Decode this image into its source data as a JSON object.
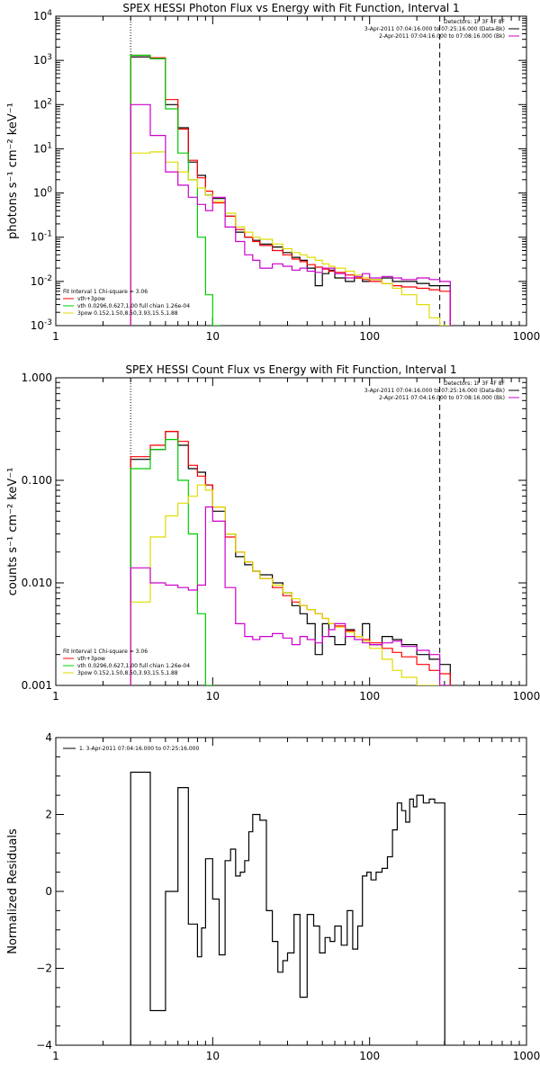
{
  "chart_data": [
    {
      "type": "line",
      "title": "SPEX HESSI Photon Flux vs Energy with Fit Function, Interval 1",
      "xlabel": "",
      "ylabel": "photons s⁻¹ cm⁻² keV⁻¹",
      "xscale": "log",
      "yscale": "log",
      "xlim": [
        1,
        1000
      ],
      "ylim": [
        0.001,
        10000
      ],
      "xticks": [
        1,
        10,
        100,
        1000
      ],
      "xtick_labels": [
        "1",
        "10",
        "100",
        "1000"
      ],
      "yticks": [
        0.001,
        0.01,
        0.1,
        1,
        10,
        100,
        1000,
        10000
      ],
      "ytick_labels": [
        [
          "10",
          "-3"
        ],
        [
          "10",
          "-2"
        ],
        [
          "10",
          "-1"
        ],
        [
          "10",
          "0"
        ],
        [
          "10",
          "1"
        ],
        [
          "10",
          "2"
        ],
        [
          "10",
          "3"
        ],
        [
          "10",
          "4"
        ]
      ],
      "vlines": [
        {
          "x": 3,
          "style": "dotted"
        },
        {
          "x": 280,
          "style": "dashed"
        }
      ],
      "legend_topright": [
        "Detectors: 1F 3F 4F 8F",
        "3-Apr-2011 07:04:16.000 to 07:25:16.000 (Data-Bk)",
        "2-Apr-2011 07:04:16.000 to 07:08:16.000 (Bk)"
      ],
      "legend_bottomleft": [
        "Fit Interval 1    Chi-square = 3.06",
        "vth+3pow",
        "vth 0.0296,0.627,1.00  full chian 1.26e-04",
        "3pow 0.152,1.50,8.50,3.93,15.5,1.88"
      ],
      "series": [
        {
          "name": "3-Apr-2011 07:04:16.000 to 07:25:16.000 (Data-Bk)",
          "color": "#000000",
          "x": [
            3,
            4,
            5,
            6,
            7,
            8,
            9,
            10,
            12,
            14,
            16,
            18,
            20,
            24,
            28,
            32,
            36,
            40,
            45,
            50,
            55,
            60,
            70,
            80,
            90,
            100,
            120,
            140,
            160,
            200,
            240,
            280
          ],
          "y": [
            1200,
            1100,
            100,
            30,
            5,
            2.5,
            0.9,
            0.75,
            0.3,
            0.13,
            0.1,
            0.085,
            0.07,
            0.06,
            0.045,
            0.035,
            0.03,
            0.02,
            0.008,
            0.015,
            0.018,
            0.012,
            0.01,
            0.012,
            0.01,
            0.011,
            0.012,
            0.01,
            0.01,
            0.009,
            0.008,
            0.008
          ]
        },
        {
          "name": "vth+3pow",
          "color": "#ff0000",
          "x": [
            3,
            4,
            5,
            6,
            7,
            8,
            9,
            10,
            12,
            14,
            16,
            18,
            20,
            24,
            28,
            32,
            36,
            40,
            45,
            50,
            55,
            60,
            70,
            80,
            90,
            100,
            120,
            140,
            160,
            200,
            240,
            280
          ],
          "y": [
            1300,
            1150,
            130,
            28,
            5.5,
            2.2,
            1.1,
            0.6,
            0.3,
            0.15,
            0.1,
            0.08,
            0.065,
            0.05,
            0.04,
            0.032,
            0.028,
            0.024,
            0.021,
            0.019,
            0.017,
            0.016,
            0.014,
            0.012,
            0.011,
            0.01,
            0.009,
            0.008,
            0.0075,
            0.007,
            0.0065,
            0.006
          ]
        },
        {
          "name": "vth 0.0296,0.627,1.00  full chian 1.26e-04",
          "color": "#00cc00",
          "x": [
            3,
            4,
            5,
            6,
            7,
            8,
            9,
            10
          ],
          "y": [
            1300,
            1100,
            80,
            8,
            2,
            0.1,
            0.005,
            0.001
          ]
        },
        {
          "name": "3pow 0.152,1.50,8.50,3.93,15.5,1.88",
          "color": "#dddd00",
          "x": [
            3,
            4,
            5,
            6,
            7,
            8,
            9,
            10,
            12,
            14,
            16,
            18,
            20,
            24,
            28,
            32,
            36,
            40,
            45,
            50,
            55,
            60,
            70,
            80,
            90,
            100,
            120,
            140,
            160,
            200,
            240,
            280
          ],
          "y": [
            8,
            8.5,
            5,
            3,
            2,
            1.3,
            0.9,
            0.65,
            0.35,
            0.17,
            0.13,
            0.1,
            0.09,
            0.07,
            0.055,
            0.045,
            0.04,
            0.035,
            0.03,
            0.025,
            0.022,
            0.02,
            0.017,
            0.014,
            0.012,
            0.011,
            0.009,
            0.007,
            0.005,
            0.003,
            0.0015,
            0.001
          ]
        },
        {
          "name": "2-Apr-2011 07:04:16.000 to 07:08:16.000 (Bk)",
          "color": "#cc00cc",
          "x": [
            3,
            4,
            5,
            6,
            7,
            8,
            9,
            10,
            12,
            14,
            16,
            18,
            20,
            24,
            28,
            32,
            36,
            40,
            45,
            50,
            55,
            60,
            70,
            80,
            90,
            100,
            120,
            140,
            160,
            200,
            240,
            280
          ],
          "y": [
            100,
            20,
            3,
            1.5,
            0.8,
            0.55,
            0.4,
            0.8,
            0.17,
            0.08,
            0.04,
            0.03,
            0.02,
            0.025,
            0.022,
            0.018,
            0.02,
            0.017,
            0.016,
            0.02,
            0.02,
            0.015,
            0.012,
            0.013,
            0.015,
            0.012,
            0.013,
            0.012,
            0.011,
            0.012,
            0.011,
            0.01
          ]
        }
      ]
    },
    {
      "type": "line",
      "title": "SPEX HESSI Count Flux vs Energy with Fit Function, Interval 1",
      "xlabel": "",
      "ylabel": "counts s⁻¹ cm⁻² keV⁻¹",
      "xscale": "log",
      "yscale": "log",
      "xlim": [
        1,
        1000
      ],
      "ylim": [
        0.001,
        1
      ],
      "xticks": [
        1,
        10,
        100,
        1000
      ],
      "xtick_labels": [
        "1",
        "10",
        "100",
        "1000"
      ],
      "yticks": [
        0.001,
        0.01,
        0.1,
        1
      ],
      "ytick_labels": [
        [
          "0.001",
          ""
        ],
        [
          "0.010",
          ""
        ],
        [
          "0.100",
          ""
        ],
        [
          "1.000",
          ""
        ]
      ],
      "vlines": [
        {
          "x": 3,
          "style": "dotted"
        },
        {
          "x": 280,
          "style": "dashed"
        }
      ],
      "legend_topright": [
        "Detectors: 1F 3F 4F 8F",
        "3-Apr-2011 07:04:16.000 to 07:25:16.000 (Data-Bk)",
        "2-Apr-2011 07:04:16.000 to 07:08:16.000 (Bk)"
      ],
      "legend_bottomleft": [
        "Fit Interval 1    Chi-square = 3.06",
        "vth+3pow",
        "vth 0.0296,0.627,1.00  full chian 1.26e-04",
        "3pow 0.152,1.50,8.50,3.93,15.5,1.88"
      ],
      "series": [
        {
          "name": "3-Apr-2011 07:04:16.000 to 07:25:16.000 (Data-Bk)",
          "color": "#000000",
          "x": [
            3,
            4,
            5,
            6,
            7,
            8,
            9,
            10,
            12,
            14,
            16,
            18,
            20,
            24,
            28,
            32,
            36,
            40,
            45,
            50,
            55,
            60,
            70,
            80,
            90,
            100,
            120,
            140,
            160,
            200,
            240,
            280
          ],
          "y": [
            0.16,
            0.2,
            0.3,
            0.22,
            0.13,
            0.12,
            0.09,
            0.05,
            0.03,
            0.018,
            0.015,
            0.013,
            0.012,
            0.01,
            0.008,
            0.006,
            0.005,
            0.004,
            0.002,
            0.004,
            0.003,
            0.0025,
            0.0035,
            0.003,
            0.004,
            0.0025,
            0.003,
            0.0028,
            0.0025,
            0.002,
            0.0018,
            0.0016
          ]
        },
        {
          "name": "vth+3pow",
          "color": "#ff0000",
          "x": [
            3,
            4,
            5,
            6,
            7,
            8,
            9,
            10,
            12,
            14,
            16,
            18,
            20,
            24,
            28,
            32,
            36,
            40,
            45,
            50,
            55,
            60,
            70,
            80,
            90,
            100,
            120,
            140,
            160,
            200,
            240,
            280
          ],
          "y": [
            0.17,
            0.22,
            0.3,
            0.24,
            0.14,
            0.11,
            0.09,
            0.055,
            0.028,
            0.02,
            0.016,
            0.013,
            0.011,
            0.009,
            0.0075,
            0.0065,
            0.006,
            0.0055,
            0.005,
            0.0045,
            0.004,
            0.0038,
            0.0034,
            0.003,
            0.0028,
            0.0026,
            0.0023,
            0.0021,
            0.0019,
            0.0016,
            0.0014,
            0.0013
          ]
        },
        {
          "name": "vth 0.0296,0.627,1.00  full chian 1.26e-04",
          "color": "#00cc00",
          "x": [
            3,
            4,
            5,
            6,
            7,
            8,
            9
          ],
          "y": [
            0.13,
            0.2,
            0.25,
            0.1,
            0.03,
            0.005,
            0.001
          ]
        },
        {
          "name": "3pow 0.152,1.50,8.50,3.93,15.5,1.88",
          "color": "#dddd00",
          "x": [
            3,
            4,
            5,
            6,
            7,
            8,
            9,
            10,
            12,
            14,
            16,
            18,
            20,
            24,
            28,
            32,
            36,
            40,
            45,
            50,
            55,
            60,
            70,
            80,
            90,
            100,
            120,
            140,
            160,
            200,
            240
          ],
          "y": [
            0.0065,
            0.028,
            0.045,
            0.06,
            0.07,
            0.09,
            0.08,
            0.055,
            0.03,
            0.02,
            0.016,
            0.013,
            0.011,
            0.0095,
            0.008,
            0.007,
            0.006,
            0.0055,
            0.005,
            0.0045,
            0.004,
            0.0037,
            0.0033,
            0.003,
            0.0027,
            0.0023,
            0.0018,
            0.0014,
            0.0012,
            0.001,
            0.001
          ]
        },
        {
          "name": "2-Apr-2011 07:04:16.000 to 07:08:16.000 (Bk)",
          "color": "#cc00cc",
          "x": [
            3,
            4,
            5,
            6,
            7,
            8,
            9,
            10,
            12,
            14,
            16,
            18,
            20,
            24,
            28,
            32,
            36,
            40,
            45,
            50,
            55,
            60,
            70,
            80,
            90,
            100,
            120,
            140,
            160,
            200,
            240,
            280
          ],
          "y": [
            0.014,
            0.01,
            0.0095,
            0.009,
            0.0085,
            0.0095,
            0.055,
            0.04,
            0.009,
            0.004,
            0.003,
            0.0028,
            0.003,
            0.0032,
            0.0029,
            0.0025,
            0.003,
            0.0028,
            0.0026,
            0.003,
            0.0035,
            0.004,
            0.003,
            0.0028,
            0.0026,
            0.0025,
            0.0026,
            0.0027,
            0.0024,
            0.0022,
            0.002,
            0.001
          ]
        }
      ]
    },
    {
      "type": "line",
      "title": "",
      "xlabel": "",
      "ylabel": "Normalized Residuals",
      "xscale": "log",
      "yscale": "linear",
      "xlim": [
        1,
        1000
      ],
      "ylim": [
        -4,
        4
      ],
      "xticks": [
        1,
        10,
        100,
        1000
      ],
      "xtick_labels": [
        "1",
        "10",
        "100",
        "1000"
      ],
      "yticks": [
        -4,
        -2,
        0,
        2,
        4
      ],
      "ytick_labels": [
        [
          "−4",
          ""
        ],
        [
          "−2",
          ""
        ],
        [
          "0",
          ""
        ],
        [
          "2",
          ""
        ],
        [
          "4",
          ""
        ]
      ],
      "legend_topleft": [
        "1.  3-Apr-2011 07:04:16.000 to 07:25:16.000"
      ],
      "series": [
        {
          "name": "1.  3-Apr-2011 07:04:16.000 to 07:25:16.000",
          "color": "#000000",
          "x": [
            3,
            4,
            5,
            6,
            7,
            8,
            8.5,
            9,
            10,
            11,
            12,
            13,
            14,
            15,
            16,
            17,
            18,
            20,
            22,
            24,
            26,
            28,
            30,
            33,
            36,
            40,
            44,
            48,
            52,
            56,
            60,
            66,
            72,
            78,
            84,
            90,
            96,
            102,
            110,
            120,
            130,
            140,
            150,
            160,
            170,
            180,
            190,
            200,
            220,
            240,
            260,
            280
          ],
          "y": [
            3.1,
            -3.1,
            0,
            2.7,
            -0.85,
            -1.7,
            -0.95,
            0.85,
            -0.2,
            -1.65,
            0.8,
            1.1,
            0.4,
            0.5,
            0.8,
            1.55,
            2.0,
            1.85,
            -0.5,
            -1.3,
            -2.1,
            -1.8,
            -1.6,
            -0.6,
            -2.75,
            -0.6,
            -0.9,
            -1.6,
            -1.2,
            -1.3,
            -0.9,
            -1.4,
            -0.5,
            -1.5,
            -0.9,
            0.4,
            0.5,
            0.3,
            0.5,
            0.6,
            0.9,
            1.6,
            2.3,
            2.1,
            1.8,
            2.4,
            2.2,
            2.5,
            2.3,
            2.4,
            2.3,
            2.3
          ]
        }
      ]
    }
  ]
}
